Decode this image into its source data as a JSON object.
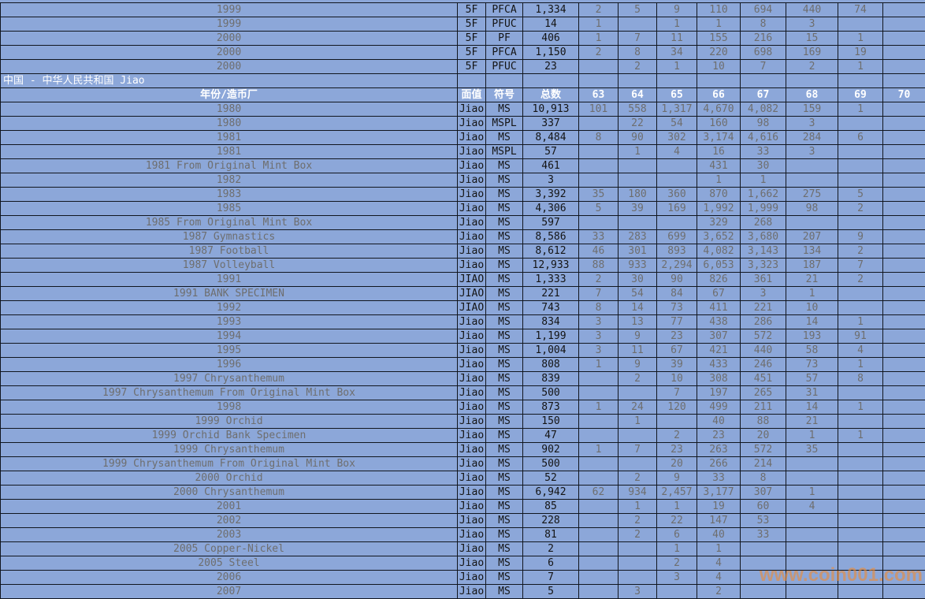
{
  "watermark": "www.coin001.com",
  "colors": {
    "table_bg": "#8CA7D9",
    "grid": "#11161f",
    "header_text": "#FFFFFF",
    "label_text": "#6E6E6E",
    "value_text": "#141414",
    "count_text": "#6E6E6E",
    "watermark_orange": "#EC8D37"
  },
  "columns": {
    "year_mint": "年份/造币厂",
    "denom": "面值",
    "symbol": "符号",
    "total": "总数",
    "grades": [
      "63",
      "64",
      "65",
      "66",
      "67",
      "68",
      "69",
      "70"
    ]
  },
  "section_header": "中国 - 中华人民共和国 Jiao",
  "top_section": {
    "rows": [
      {
        "label": "1999",
        "denom": "5F",
        "symbol": "PFCA",
        "total": "1,334",
        "counts": [
          "2",
          "5",
          "9",
          "110",
          "694",
          "440",
          "74",
          ""
        ]
      },
      {
        "label": "1999",
        "denom": "5F",
        "symbol": "PFUC",
        "total": "14",
        "counts": [
          "1",
          "",
          "1",
          "1",
          "8",
          "3",
          "",
          ""
        ]
      },
      {
        "label": "2000",
        "denom": "5F",
        "symbol": "PF",
        "total": "406",
        "counts": [
          "1",
          "7",
          "11",
          "155",
          "216",
          "15",
          "1",
          ""
        ]
      },
      {
        "label": "2000",
        "denom": "5F",
        "symbol": "PFCA",
        "total": "1,150",
        "counts": [
          "2",
          "8",
          "34",
          "220",
          "698",
          "169",
          "19",
          ""
        ]
      },
      {
        "label": "2000",
        "denom": "5F",
        "symbol": "PFUC",
        "total": "23",
        "counts": [
          "",
          "2",
          "1",
          "10",
          "7",
          "2",
          "1",
          ""
        ]
      }
    ]
  },
  "jiao_section": {
    "rows": [
      {
        "label": "1980",
        "denom": "Jiao",
        "symbol": "MS",
        "total": "10,913",
        "counts": [
          "101",
          "558",
          "1,317",
          "4,670",
          "4,082",
          "159",
          "1",
          ""
        ]
      },
      {
        "label": "1980",
        "denom": "Jiao",
        "symbol": "MSPL",
        "total": "337",
        "counts": [
          "",
          "22",
          "54",
          "160",
          "98",
          "3",
          "",
          ""
        ]
      },
      {
        "label": "1981",
        "denom": "Jiao",
        "symbol": "MS",
        "total": "8,484",
        "counts": [
          "8",
          "90",
          "302",
          "3,174",
          "4,616",
          "284",
          "6",
          ""
        ]
      },
      {
        "label": "1981",
        "denom": "Jiao",
        "symbol": "MSPL",
        "total": "57",
        "counts": [
          "",
          "1",
          "4",
          "16",
          "33",
          "3",
          "",
          ""
        ]
      },
      {
        "label": "1981 From Original Mint Box",
        "denom": "Jiao",
        "symbol": "MS",
        "total": "461",
        "counts": [
          "",
          "",
          "",
          "431",
          "30",
          "",
          "",
          ""
        ]
      },
      {
        "label": "1982",
        "denom": "Jiao",
        "symbol": "MS",
        "total": "3",
        "counts": [
          "",
          "",
          "",
          "1",
          "1",
          "",
          "",
          ""
        ]
      },
      {
        "label": "1983",
        "denom": "Jiao",
        "symbol": "MS",
        "total": "3,392",
        "counts": [
          "35",
          "180",
          "360",
          "870",
          "1,662",
          "275",
          "5",
          ""
        ]
      },
      {
        "label": "1985",
        "denom": "Jiao",
        "symbol": "MS",
        "total": "4,306",
        "counts": [
          "5",
          "39",
          "169",
          "1,992",
          "1,999",
          "98",
          "2",
          ""
        ]
      },
      {
        "label": "1985 From Original Mint Box",
        "denom": "Jiao",
        "symbol": "MS",
        "total": "597",
        "counts": [
          "",
          "",
          "",
          "329",
          "268",
          "",
          "",
          ""
        ]
      },
      {
        "label": "1987 Gymnastics",
        "denom": "Jiao",
        "symbol": "MS",
        "total": "8,586",
        "counts": [
          "33",
          "283",
          "699",
          "3,652",
          "3,680",
          "207",
          "9",
          ""
        ]
      },
      {
        "label": "1987 Football",
        "denom": "Jiao",
        "symbol": "MS",
        "total": "8,612",
        "counts": [
          "46",
          "301",
          "893",
          "4,082",
          "3,143",
          "134",
          "2",
          ""
        ]
      },
      {
        "label": "1987 Volleyball",
        "denom": "Jiao",
        "symbol": "MS",
        "total": "12,933",
        "counts": [
          "88",
          "933",
          "2,294",
          "6,053",
          "3,323",
          "187",
          "7",
          ""
        ]
      },
      {
        "label": "1991",
        "denom": "JIAO",
        "symbol": "MS",
        "total": "1,333",
        "counts": [
          "2",
          "30",
          "90",
          "826",
          "361",
          "21",
          "2",
          ""
        ]
      },
      {
        "label": "1991 BANK SPECIMEN",
        "denom": "JIAO",
        "symbol": "MS",
        "total": "221",
        "counts": [
          "7",
          "54",
          "84",
          "67",
          "3",
          "1",
          "",
          ""
        ]
      },
      {
        "label": "1992",
        "denom": "JIAO",
        "symbol": "MS",
        "total": "743",
        "counts": [
          "8",
          "14",
          "73",
          "411",
          "221",
          "10",
          "",
          ""
        ]
      },
      {
        "label": "1993",
        "denom": "Jiao",
        "symbol": "MS",
        "total": "834",
        "counts": [
          "3",
          "13",
          "77",
          "438",
          "286",
          "14",
          "1",
          ""
        ]
      },
      {
        "label": "1994",
        "denom": "Jiao",
        "symbol": "MS",
        "total": "1,199",
        "counts": [
          "3",
          "9",
          "23",
          "307",
          "572",
          "193",
          "91",
          ""
        ]
      },
      {
        "label": "1995",
        "denom": "Jiao",
        "symbol": "MS",
        "total": "1,004",
        "counts": [
          "3",
          "11",
          "67",
          "421",
          "440",
          "58",
          "4",
          ""
        ]
      },
      {
        "label": "1996",
        "denom": "Jiao",
        "symbol": "MS",
        "total": "808",
        "counts": [
          "1",
          "9",
          "39",
          "433",
          "246",
          "73",
          "1",
          ""
        ]
      },
      {
        "label": "1997 Chrysanthemum",
        "denom": "Jiao",
        "symbol": "MS",
        "total": "839",
        "counts": [
          "",
          "2",
          "10",
          "308",
          "451",
          "57",
          "8",
          ""
        ]
      },
      {
        "label": "1997 Chrysanthemum From Original Mint Box",
        "denom": "Jiao",
        "symbol": "MS",
        "total": "500",
        "counts": [
          "",
          "",
          "7",
          "197",
          "265",
          "31",
          "",
          ""
        ]
      },
      {
        "label": "1998",
        "denom": "Jiao",
        "symbol": "MS",
        "total": "873",
        "counts": [
          "1",
          "24",
          "120",
          "499",
          "211",
          "14",
          "1",
          ""
        ]
      },
      {
        "label": "1999 Orchid",
        "denom": "Jiao",
        "symbol": "MS",
        "total": "150",
        "counts": [
          "",
          "1",
          "",
          "40",
          "88",
          "21",
          "",
          ""
        ]
      },
      {
        "label": "1999 Orchid Bank Specimen",
        "denom": "Jiao",
        "symbol": "MS",
        "total": "47",
        "counts": [
          "",
          "",
          "2",
          "23",
          "20",
          "1",
          "1",
          ""
        ]
      },
      {
        "label": "1999 Chrysanthemum",
        "denom": "Jiao",
        "symbol": "MS",
        "total": "902",
        "counts": [
          "1",
          "7",
          "23",
          "263",
          "572",
          "35",
          "",
          ""
        ]
      },
      {
        "label": "1999 Chrysanthemum From Original Mint Box",
        "denom": "Jiao",
        "symbol": "MS",
        "total": "500",
        "counts": [
          "",
          "",
          "20",
          "266",
          "214",
          "",
          "",
          ""
        ]
      },
      {
        "label": "2000 Orchid",
        "denom": "Jiao",
        "symbol": "MS",
        "total": "52",
        "counts": [
          "",
          "2",
          "9",
          "33",
          "8",
          "",
          "",
          ""
        ]
      },
      {
        "label": "2000 Chrysanthemum",
        "denom": "Jiao",
        "symbol": "MS",
        "total": "6,942",
        "counts": [
          "62",
          "934",
          "2,457",
          "3,177",
          "307",
          "1",
          "",
          ""
        ]
      },
      {
        "label": "2001",
        "denom": "Jiao",
        "symbol": "MS",
        "total": "85",
        "counts": [
          "",
          "1",
          "1",
          "19",
          "60",
          "4",
          "",
          ""
        ]
      },
      {
        "label": "2002",
        "denom": "Jiao",
        "symbol": "MS",
        "total": "228",
        "counts": [
          "",
          "2",
          "22",
          "147",
          "53",
          "",
          "",
          ""
        ]
      },
      {
        "label": "2003",
        "denom": "Jiao",
        "symbol": "MS",
        "total": "81",
        "counts": [
          "",
          "2",
          "6",
          "40",
          "33",
          "",
          "",
          ""
        ]
      },
      {
        "label": "2005 Copper-Nickel",
        "denom": "Jiao",
        "symbol": "MS",
        "total": "2",
        "counts": [
          "",
          "",
          "1",
          "1",
          "",
          "",
          "",
          ""
        ]
      },
      {
        "label": "2005 Steel",
        "denom": "Jiao",
        "symbol": "MS",
        "total": "6",
        "counts": [
          "",
          "",
          "2",
          "4",
          "",
          "",
          "",
          ""
        ]
      },
      {
        "label": "2006",
        "denom": "Jiao",
        "symbol": "MS",
        "total": "7",
        "counts": [
          "",
          "",
          "3",
          "4",
          "",
          "",
          "",
          ""
        ]
      },
      {
        "label": "2007",
        "denom": "Jiao",
        "symbol": "MS",
        "total": "5",
        "counts": [
          "",
          "3",
          "",
          "2",
          "",
          "",
          "",
          ""
        ]
      }
    ]
  }
}
